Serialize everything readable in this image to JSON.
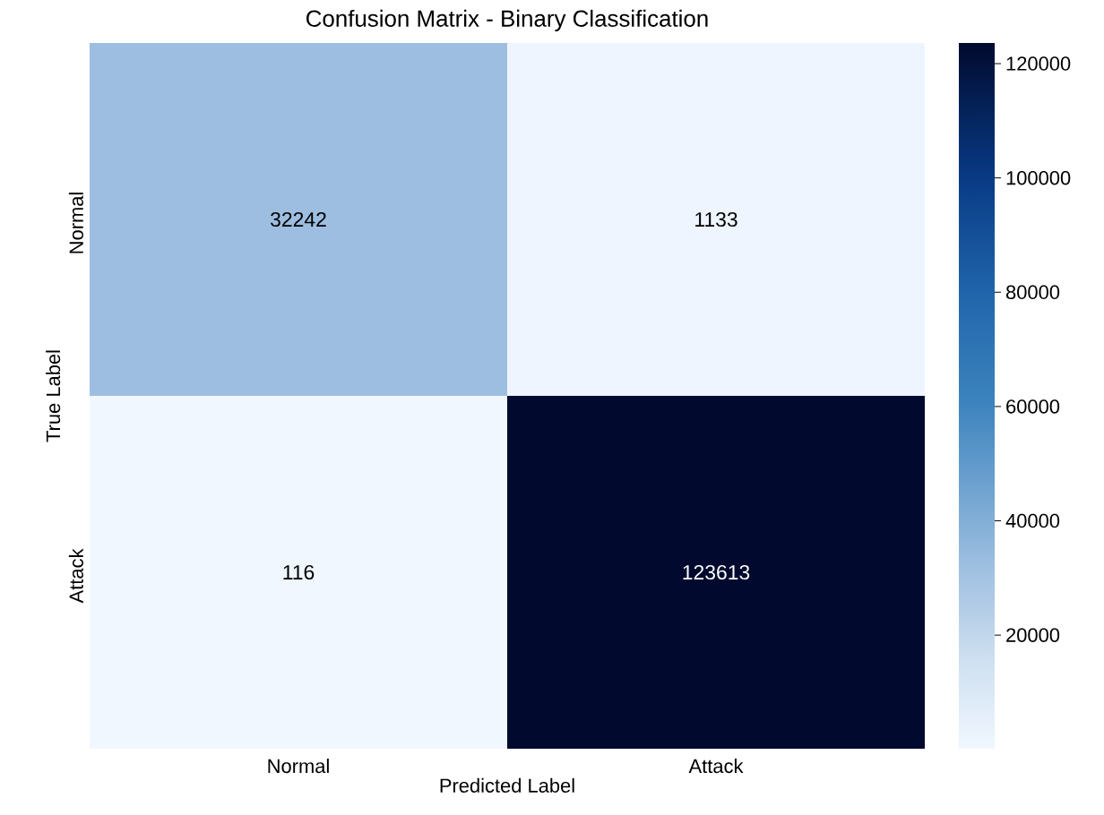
{
  "chart_data": {
    "type": "heatmap",
    "title": "Confusion Matrix - Binary Classification",
    "xlabel": "Predicted Label",
    "ylabel": "True Label",
    "categories": [
      "Normal",
      "Attack"
    ],
    "y_categories": [
      "Normal",
      "Attack"
    ],
    "cells": [
      [
        32242,
        1133
      ],
      [
        116,
        123613
      ]
    ],
    "data_labels": true,
    "clim": [
      116,
      123613
    ],
    "cticks": [
      20000,
      40000,
      60000,
      80000,
      100000,
      120000
    ]
  }
}
